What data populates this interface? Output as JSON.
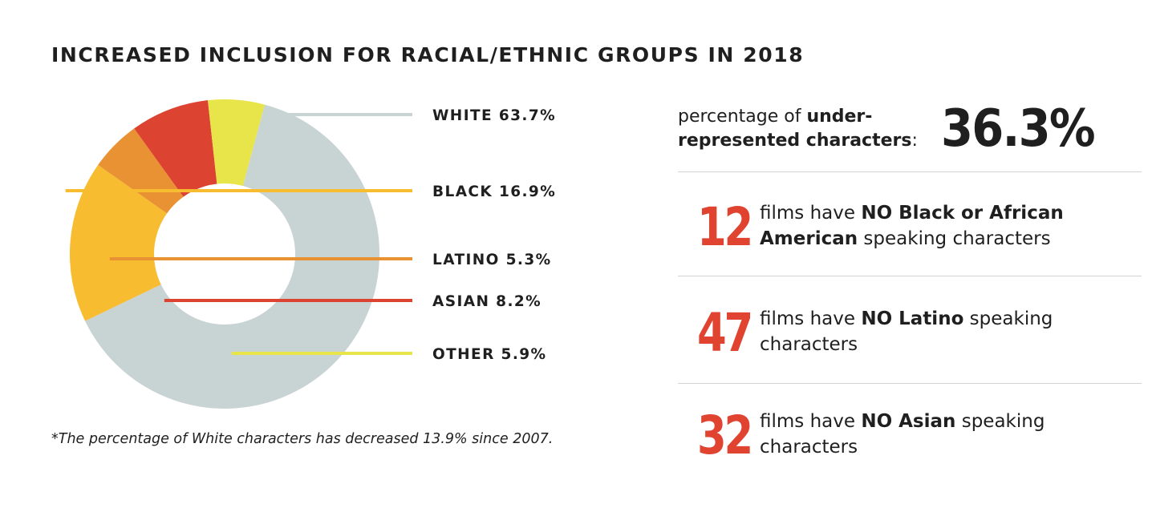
{
  "title": "INCREASED INCLUSION FOR RACIAL/ETHNIC GROUPS IN 2018",
  "chart_data": {
    "type": "pie",
    "variant": "donut",
    "title": "INCREASED INCLUSION FOR RACIAL/ETHNIC GROUPS IN 2018",
    "legend_position": "right",
    "slices": [
      {
        "name": "WHITE",
        "value": 63.7,
        "label": "WHITE 63.7%",
        "color": "#c8d3d3"
      },
      {
        "name": "BLACK",
        "value": 16.9,
        "label": "BLACK 16.9%",
        "color": "#f7bc30"
      },
      {
        "name": "LATINO",
        "value": 5.3,
        "label": "LATINO 5.3%",
        "color": "#e99233"
      },
      {
        "name": "ASIAN",
        "value": 8.2,
        "label": "ASIAN 8.2%",
        "color": "#dc4330"
      },
      {
        "name": "OTHER",
        "value": 5.9,
        "label": "OTHER 5.9%",
        "color": "#e7e54a"
      }
    ]
  },
  "footnote": "*The percentage of White characters has decreased 13.9% since 2007.",
  "summary": {
    "prefix": "percentage of ",
    "bold": "under-represented characters",
    "suffix": ":",
    "value": "36.3%"
  },
  "stats": [
    {
      "number": "12",
      "pre": "films have ",
      "bold": "NO Black or African American",
      "post": " speaking characters"
    },
    {
      "number": "47",
      "pre": "films have ",
      "bold": "NO Latino",
      "post": " speaking characters"
    },
    {
      "number": "32",
      "pre": "films have ",
      "bold": "NO Asian",
      "post": " speaking characters"
    }
  ],
  "colors": {
    "accent_red": "#e04330",
    "text": "#1f1f1f",
    "divider": "#cfd3d3"
  }
}
